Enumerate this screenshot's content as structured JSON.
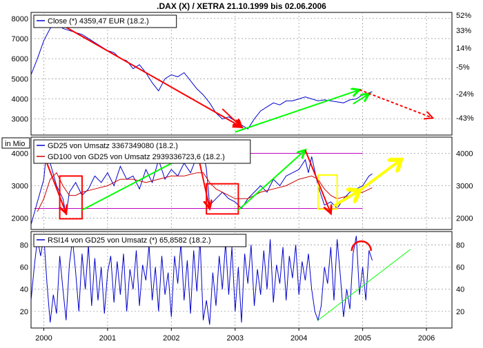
{
  "chart_data": {
    "title": ".DAX (X) / XETRA 21.10.1999 bis 02.06.2006",
    "x_axis": {
      "ticks": [
        "2000",
        "2001",
        "2002",
        "2003",
        "2004",
        "2005",
        "2006"
      ],
      "range": [
        1999.8,
        2006.4
      ]
    },
    "panels": [
      {
        "id": "price",
        "type": "line",
        "legend": [
          "Close (*) 4359,47 EUR (18.2.)"
        ],
        "y_left": {
          "ticks": [
            3000,
            4000,
            5000,
            6000,
            7000,
            8000
          ],
          "range": [
            2200,
            8300
          ]
        },
        "y_right_labels": [
          {
            "label": "52%",
            "at": 8170
          },
          {
            "label": "33%",
            "at": 7410
          },
          {
            "label": "14%",
            "at": 6540
          },
          {
            "label": "-5%",
            "at": 5600
          },
          {
            "label": "-24%",
            "at": 4250
          },
          {
            "label": "-43%",
            "at": 3050
          }
        ],
        "series": [
          {
            "name": "Close (*) 4359,47 EUR (18.2.)",
            "x": [
              1999.8,
              1999.9,
              2000.0,
              2000.1,
              2000.2,
              2000.3,
              2000.4,
              2000.5,
              2000.6,
              2000.7,
              2000.8,
              2000.9,
              2001.0,
              2001.1,
              2001.2,
              2001.3,
              2001.4,
              2001.5,
              2001.6,
              2001.7,
              2001.8,
              2001.9,
              2002.0,
              2002.1,
              2002.2,
              2002.3,
              2002.4,
              2002.5,
              2002.6,
              2002.7,
              2002.8,
              2002.9,
              2003.0,
              2003.1,
              2003.2,
              2003.3,
              2003.4,
              2003.5,
              2003.6,
              2003.7,
              2003.8,
              2003.9,
              2004.0,
              2004.1,
              2004.2,
              2004.3,
              2004.4,
              2004.5,
              2004.6,
              2004.7,
              2004.8,
              2004.9,
              2005.0,
              2005.1,
              2005.15
            ],
            "values": [
              5200,
              6000,
              6900,
              7500,
              7800,
              7500,
              7400,
              7300,
              7200,
              7000,
              6800,
              6600,
              6400,
              6300,
              6000,
              5900,
              5500,
              5700,
              5300,
              4800,
              4400,
              5000,
              5200,
              5100,
              5300,
              4900,
              4500,
              4200,
              3800,
              3300,
              3000,
              3100,
              2900,
              2700,
              2500,
              3000,
              3400,
              3600,
              3800,
              3700,
              3900,
              3900,
              4000,
              4100,
              4000,
              3900,
              3950,
              3900,
              3850,
              3800,
              3950,
              4000,
              4200,
              4300,
              4359
            ]
          }
        ],
        "annotations": [
          {
            "type": "arrow",
            "color": "#ff0000",
            "from": [
              2000.3,
              7650
            ],
            "to": [
              2003.1,
              2600
            ]
          },
          {
            "type": "arrow",
            "color": "#ff0000",
            "from": [
              2002.8,
              3500
            ],
            "to": [
              2003.1,
              2600
            ]
          },
          {
            "type": "arrow",
            "color": "#00ff00",
            "from": [
              2003.0,
              2350
            ],
            "to": [
              2004.95,
              4450
            ]
          },
          {
            "type": "arrow",
            "color": "#00ff00",
            "from": [
              2004.85,
              3750
            ],
            "to": [
              2005.1,
              4250
            ]
          },
          {
            "type": "arrow",
            "color": "#ff0000",
            "dashed": true,
            "from": [
              2004.95,
              4450
            ],
            "to": [
              2006.1,
              3050
            ]
          }
        ]
      },
      {
        "id": "volume",
        "type": "line",
        "unit_label": "in Mio",
        "legend": [
          "GD25 von Umsatz 3367349080 (18.2.)",
          "GD100 von GD25 von Umsatz 2939336723,6 (18.2.)"
        ],
        "y_left": {
          "ticks": [
            2000,
            3000,
            4000
          ],
          "range": [
            1650,
            4500
          ]
        },
        "y_right": {
          "ticks": [
            2000,
            3000,
            4000
          ]
        },
        "series": [
          {
            "name": "GD25 von Umsatz 3367349080 (18.2.)",
            "x": [
              1999.8,
              1999.9,
              2000.0,
              2000.05,
              2000.1,
              2000.2,
              2000.3,
              2000.35,
              2000.4,
              2000.5,
              2000.6,
              2000.7,
              2000.8,
              2000.9,
              2001.0,
              2001.1,
              2001.2,
              2001.3,
              2001.4,
              2001.5,
              2001.6,
              2001.7,
              2001.8,
              2001.9,
              2002.0,
              2002.1,
              2002.2,
              2002.3,
              2002.4,
              2002.5,
              2002.55,
              2002.6,
              2002.7,
              2002.8,
              2002.9,
              2003.0,
              2003.1,
              2003.2,
              2003.3,
              2003.4,
              2003.5,
              2003.6,
              2003.7,
              2003.8,
              2003.9,
              2004.0,
              2004.1,
              2004.15,
              2004.2,
              2004.3,
              2004.4,
              2004.5,
              2004.6,
              2004.7,
              2004.8,
              2004.9,
              2005.0,
              2005.1,
              2005.15
            ],
            "values": [
              1800,
              2500,
              3200,
              4200,
              3700,
              3000,
              2600,
              2100,
              2800,
              3100,
              2700,
              2900,
              3300,
              3100,
              3400,
              3000,
              3600,
              3200,
              3300,
              2900,
              3500,
              3100,
              3800,
              3200,
              3500,
              3300,
              3700,
              3400,
              3900,
              4100,
              3500,
              2400,
              2600,
              2800,
              2600,
              2500,
              2300,
              2600,
              2800,
              3000,
              2800,
              3200,
              3000,
              3300,
              3400,
              3500,
              3800,
              3400,
              3900,
              3000,
              2400,
              2500,
              2300,
              2600,
              2800,
              2900,
              3000,
              3300,
              3367
            ]
          },
          {
            "name": "GD100 von GD25 von Umsatz 2939336723,6 (18.2.)",
            "x": [
              1999.9,
              2000.0,
              2000.1,
              2000.2,
              2000.3,
              2000.4,
              2000.5,
              2000.6,
              2000.8,
              2001.0,
              2001.2,
              2001.4,
              2001.6,
              2001.8,
              2002.0,
              2002.2,
              2002.4,
              2002.5,
              2002.6,
              2002.7,
              2002.8,
              2003.0,
              2003.2,
              2003.4,
              2003.6,
              2003.8,
              2004.0,
              2004.2,
              2004.3,
              2004.4,
              2004.5,
              2004.6,
              2004.8,
              2005.0,
              2005.15
            ],
            "values": [
              2200,
              2600,
              3200,
              3400,
              3000,
              2700,
              2700,
              2800,
              2900,
              3000,
              3200,
              3200,
              3100,
              3200,
              3300,
              3300,
              3400,
              3400,
              3100,
              2900,
              2800,
              2600,
              2600,
              2800,
              2900,
              3000,
              3200,
              3300,
              3200,
              2900,
              2700,
              2600,
              2700,
              2800,
              2939
            ]
          }
        ],
        "reference_lines": [
          {
            "color": "#c000c0",
            "value": 4000
          },
          {
            "color": "#c000c0",
            "value": 2300
          }
        ],
        "annotations": [
          {
            "type": "rect",
            "color": "#ff0000",
            "x": [
              2000.25,
              2000.6
            ],
            "y": [
              1980,
              3300
            ]
          },
          {
            "type": "rect",
            "color": "#ff0000",
            "x": [
              2002.55,
              2003.05
            ],
            "y": [
              2130,
              3060
            ]
          },
          {
            "type": "rect",
            "color": "#ffff00",
            "x": [
              2004.3,
              2004.6
            ],
            "y": [
              2280,
              3330
            ]
          },
          {
            "type": "arrow",
            "color": "#ff0000",
            "from": [
              2000.0,
              3950
            ],
            "to": [
              2000.35,
              2150
            ]
          },
          {
            "type": "arrow",
            "color": "#00ff00",
            "from": [
              2000.6,
              2250
            ],
            "to": [
              2002.4,
              4100
            ]
          },
          {
            "type": "arrow",
            "color": "#ff0000",
            "from": [
              2002.4,
              4100
            ],
            "to": [
              2002.6,
              2300
            ]
          },
          {
            "type": "arrow",
            "color": "#00ff00",
            "from": [
              2003.05,
              2250
            ],
            "to": [
              2004.1,
              4100
            ]
          },
          {
            "type": "arrow",
            "color": "#ff0000",
            "from": [
              2004.1,
              4100
            ],
            "to": [
              2004.5,
              2150
            ]
          },
          {
            "type": "arrow",
            "color": "#ffff00",
            "thick": true,
            "from": [
              2004.55,
              2380
            ],
            "to": [
              2004.95,
              2850
            ]
          },
          {
            "type": "arrow",
            "color": "#ffff00",
            "thick": true,
            "from": [
              2004.95,
              2850
            ],
            "to": [
              2005.6,
              3800
            ]
          }
        ]
      },
      {
        "id": "rsi",
        "type": "line",
        "legend": [
          "RSI14 von GD25 von Umsatz (*) 65,8582 (18.2.)"
        ],
        "y_left": {
          "ticks": [
            20,
            40,
            60,
            80
          ],
          "range": [
            5,
            92
          ]
        },
        "y_right": {
          "ticks": [
            20,
            40,
            60,
            80
          ]
        },
        "series": [
          {
            "name": "RSI14 von GD25 von Umsatz (*) 65,8582 (18.2.)",
            "x": [
              1999.8,
              1999.85,
              1999.9,
              1999.95,
              2000.0,
              2000.05,
              2000.1,
              2000.15,
              2000.2,
              2000.25,
              2000.3,
              2000.35,
              2000.4,
              2000.45,
              2000.5,
              2000.55,
              2000.6,
              2000.65,
              2000.7,
              2000.75,
              2000.8,
              2000.85,
              2000.9,
              2000.95,
              2001.0,
              2001.05,
              2001.1,
              2001.15,
              2001.2,
              2001.25,
              2001.3,
              2001.35,
              2001.4,
              2001.45,
              2001.5,
              2001.55,
              2001.6,
              2001.65,
              2001.7,
              2001.75,
              2001.8,
              2001.85,
              2001.9,
              2001.95,
              2002.0,
              2002.05,
              2002.1,
              2002.15,
              2002.2,
              2002.25,
              2002.3,
              2002.35,
              2002.4,
              2002.45,
              2002.5,
              2002.55,
              2002.6,
              2002.65,
              2002.7,
              2002.75,
              2002.8,
              2002.85,
              2002.9,
              2002.95,
              2003.0,
              2003.05,
              2003.1,
              2003.15,
              2003.2,
              2003.25,
              2003.3,
              2003.35,
              2003.4,
              2003.45,
              2003.5,
              2003.55,
              2003.6,
              2003.65,
              2003.7,
              2003.75,
              2003.8,
              2003.85,
              2003.9,
              2003.95,
              2004.0,
              2004.05,
              2004.1,
              2004.15,
              2004.2,
              2004.25,
              2004.3,
              2004.35,
              2004.4,
              2004.45,
              2004.5,
              2004.55,
              2004.6,
              2004.65,
              2004.7,
              2004.75,
              2004.8,
              2004.85,
              2004.9,
              2004.95,
              2005.0,
              2005.05,
              2005.1,
              2005.15
            ],
            "values": [
              30,
              60,
              85,
              70,
              88,
              45,
              10,
              35,
              18,
              70,
              40,
              12,
              62,
              85,
              55,
              20,
              72,
              40,
              80,
              25,
              68,
              30,
              60,
              18,
              55,
              70,
              28,
              65,
              35,
              72,
              20,
              58,
              40,
              75,
              25,
              62,
              48,
              80,
              30,
              60,
              20,
              70,
              35,
              55,
              15,
              70,
              45,
              82,
              30,
              66,
              18,
              75,
              38,
              85,
              12,
              30,
              8,
              55,
              25,
              70,
              40,
              82,
              35,
              78,
              20,
              60,
              10,
              72,
              45,
              80,
              25,
              58,
              35,
              75,
              40,
              85,
              28,
              62,
              45,
              78,
              30,
              70,
              50,
              80,
              35,
              65,
              48,
              72,
              40,
              20,
              12,
              25,
              60,
              45,
              78,
              30,
              85,
              52,
              15,
              40,
              22,
              72,
              88,
              35,
              60,
              30,
              75,
              66
            ]
          }
        ],
        "annotations": [
          {
            "type": "line",
            "color": "#00ff00",
            "from": [
              2004.3,
              12
            ],
            "to": [
              2005.75,
              76
            ]
          },
          {
            "type": "arc",
            "color": "#ff0000",
            "center": [
              2004.98,
              77
            ],
            "label": ""
          }
        ]
      }
    ]
  }
}
